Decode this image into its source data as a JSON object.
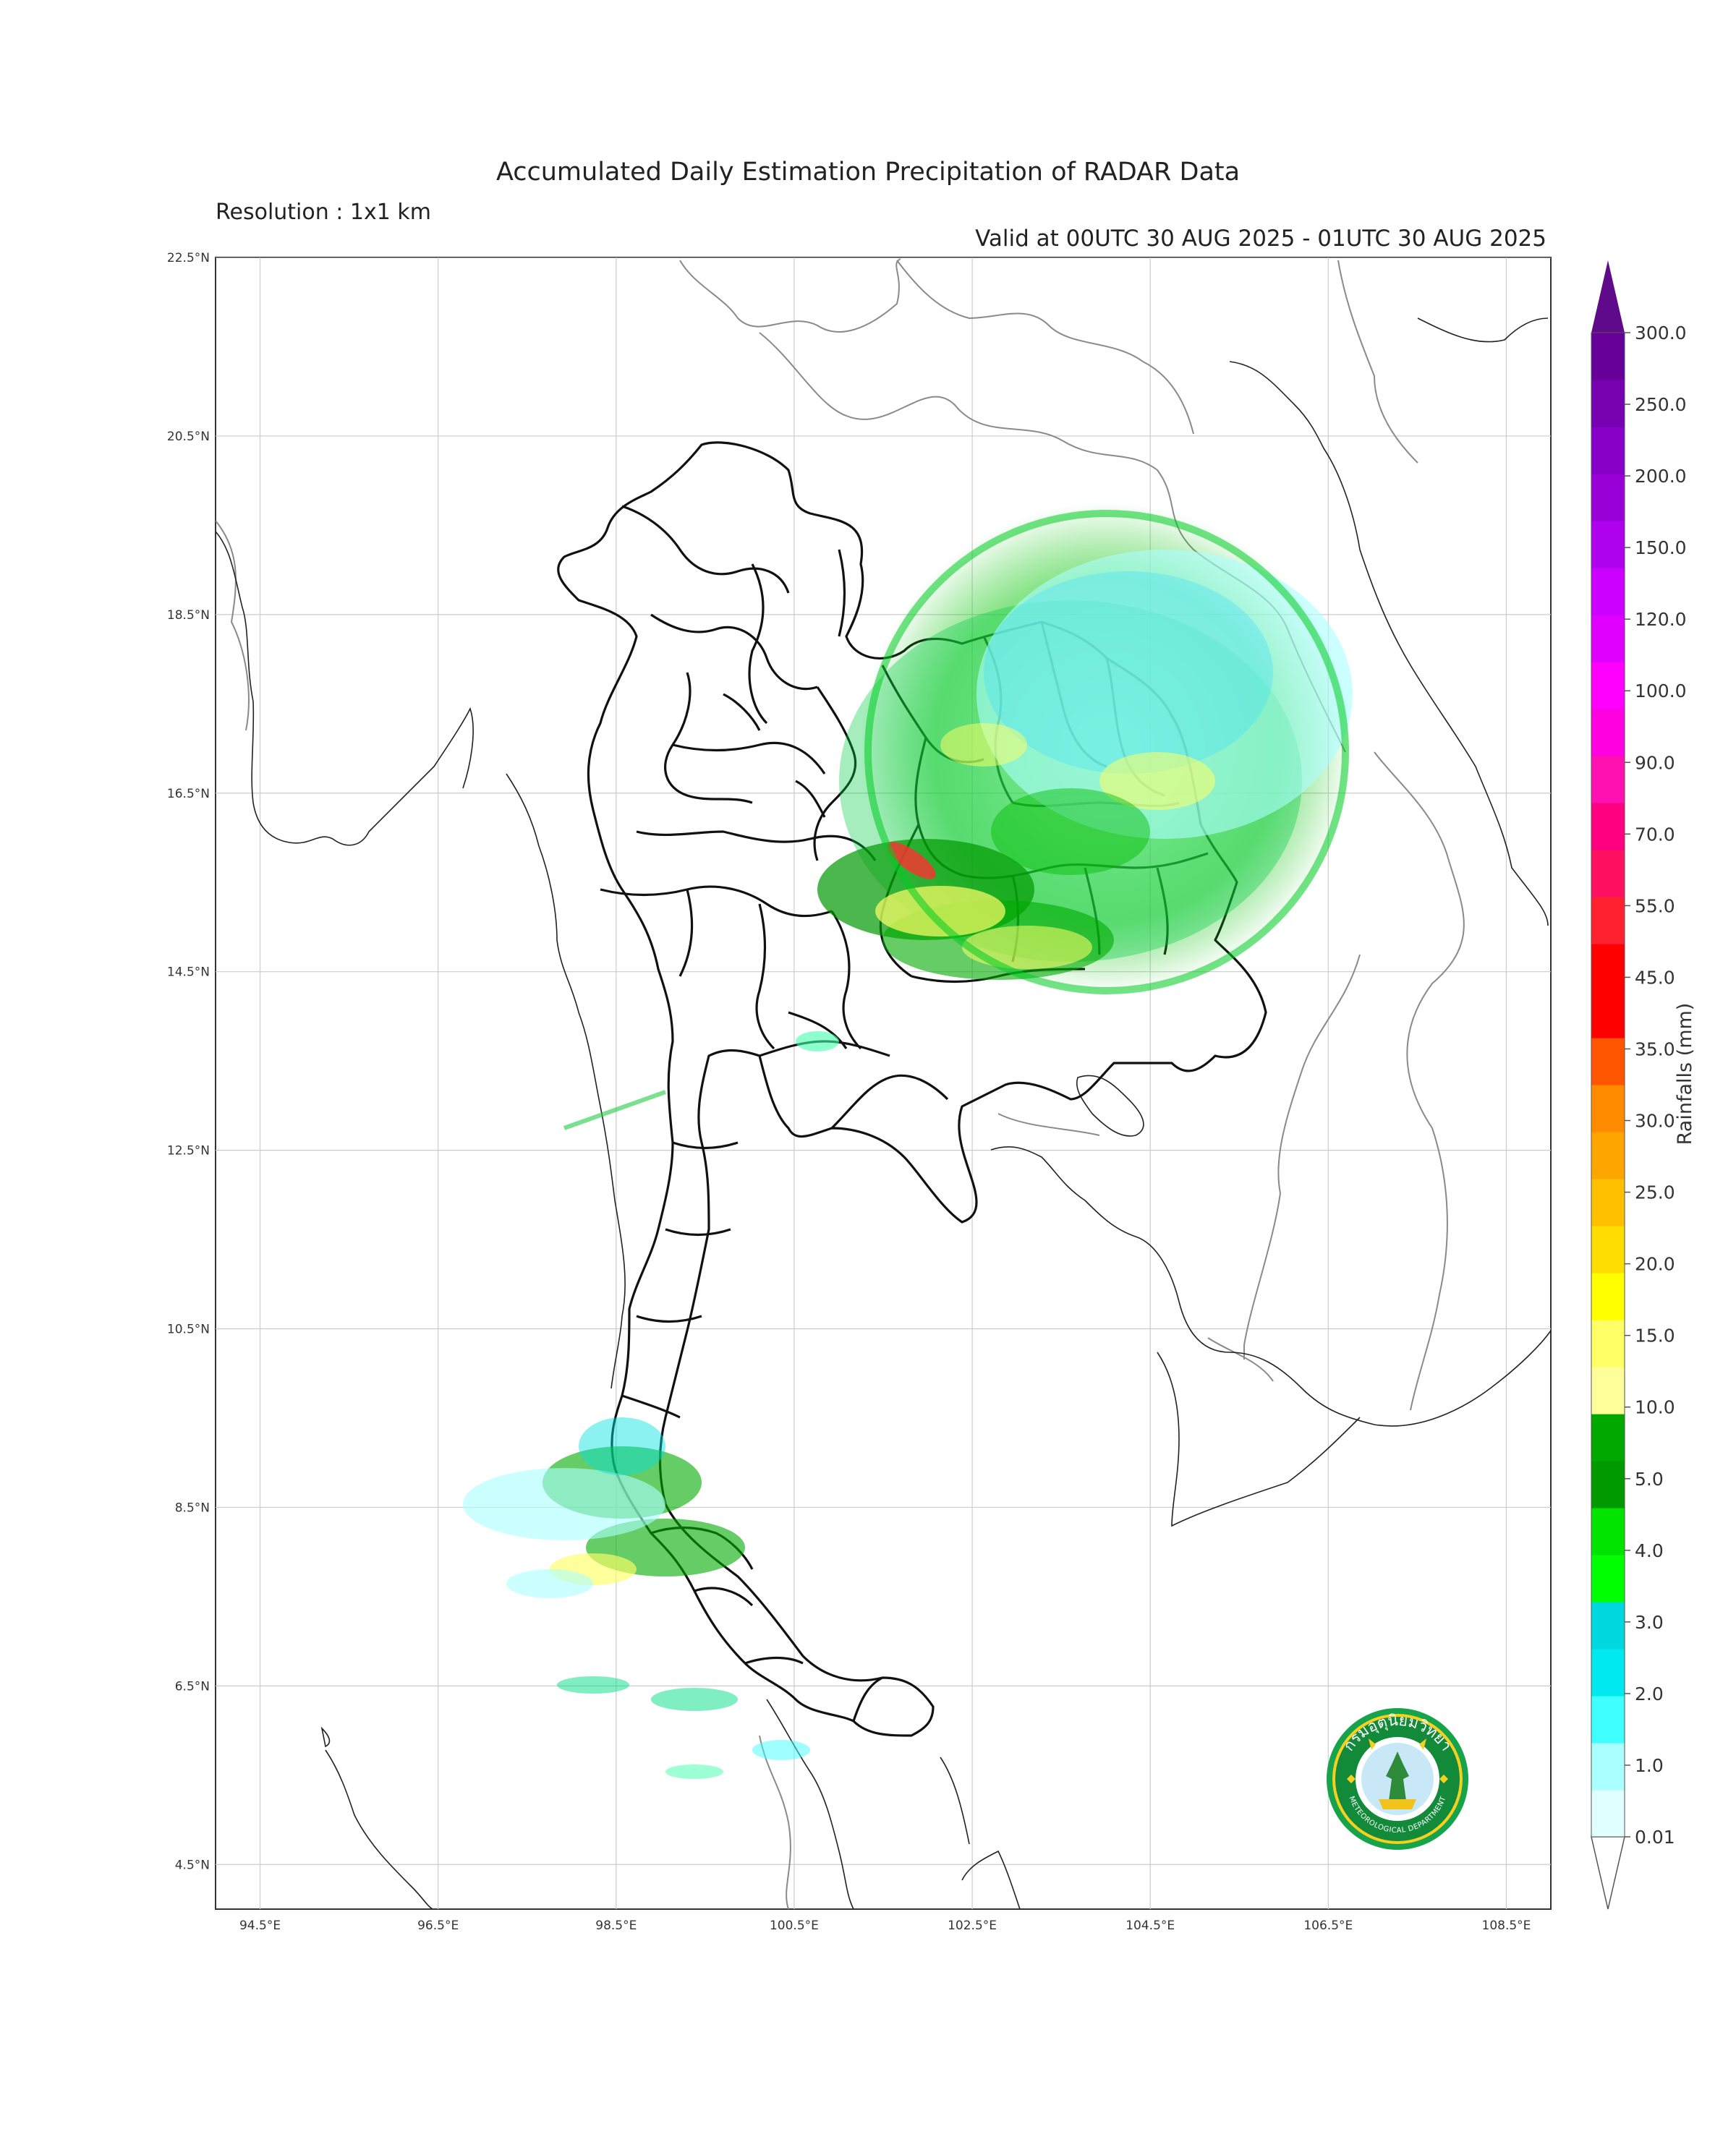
{
  "title": "Accumulated Daily Estimation Precipitation of RADAR Data",
  "resolution": "Resolution : 1x1 km",
  "valid": "Valid at 00UTC 30 AUG 2025 - 01UTC 30 AUG 2025",
  "map": {
    "lon_range": [
      94.0,
      109.0
    ],
    "lat_range": [
      4.0,
      22.5
    ],
    "lon_ticks": [
      "94.5°E",
      "96.5°E",
      "98.5°E",
      "100.5°E",
      "102.5°E",
      "104.5°E",
      "106.5°E",
      "108.5°E"
    ],
    "lat_ticks": [
      "22.5°N",
      "20.5°N",
      "18.5°N",
      "16.5°N",
      "14.5°N",
      "12.5°N",
      "10.5°N",
      "8.5°N",
      "6.5°N",
      "4.5°N"
    ],
    "gridlines": true
  },
  "colorbar": {
    "label": "Rainfalls (mm)",
    "tick_labels": [
      "0.01",
      "1.0",
      "2.0",
      "3.0",
      "4.0",
      "5.0",
      "10.0",
      "15.0",
      "20.0",
      "25.0",
      "30.0",
      "35.0",
      "45.0",
      "55.0",
      "70.0",
      "90.0",
      "100.0",
      "120.0",
      "150.0",
      "200.0",
      "250.0",
      "300.0"
    ],
    "colors": [
      "#e0ffff",
      "#aaffff",
      "#40ffff",
      "#00e8f0",
      "#00d8e0",
      "#00ff00",
      "#00e400",
      "#009900",
      "#00a800",
      "#ffff99",
      "#ffff66",
      "#ffff00",
      "#ffdd00",
      "#ffc000",
      "#ffa500",
      "#ff8c00",
      "#ff5500",
      "#ff0000",
      "#ff0000",
      "#ff2030",
      "#ff1060",
      "#ff0080",
      "#ff10b0",
      "#ff00e0",
      "#ff00ff",
      "#e000ff",
      "#cc00ff",
      "#b000f0",
      "#9900d8",
      "#8800c8",
      "#7700b0",
      "#660099"
    ],
    "colors_note": "fine levels",
    "extend_top_color": "#5e0a8a"
  },
  "logo": {
    "text_top": "กรมอุตุนิยมวิทยา",
    "text_bottom": "METEOROLOGICAL DEPARTMENT"
  }
}
